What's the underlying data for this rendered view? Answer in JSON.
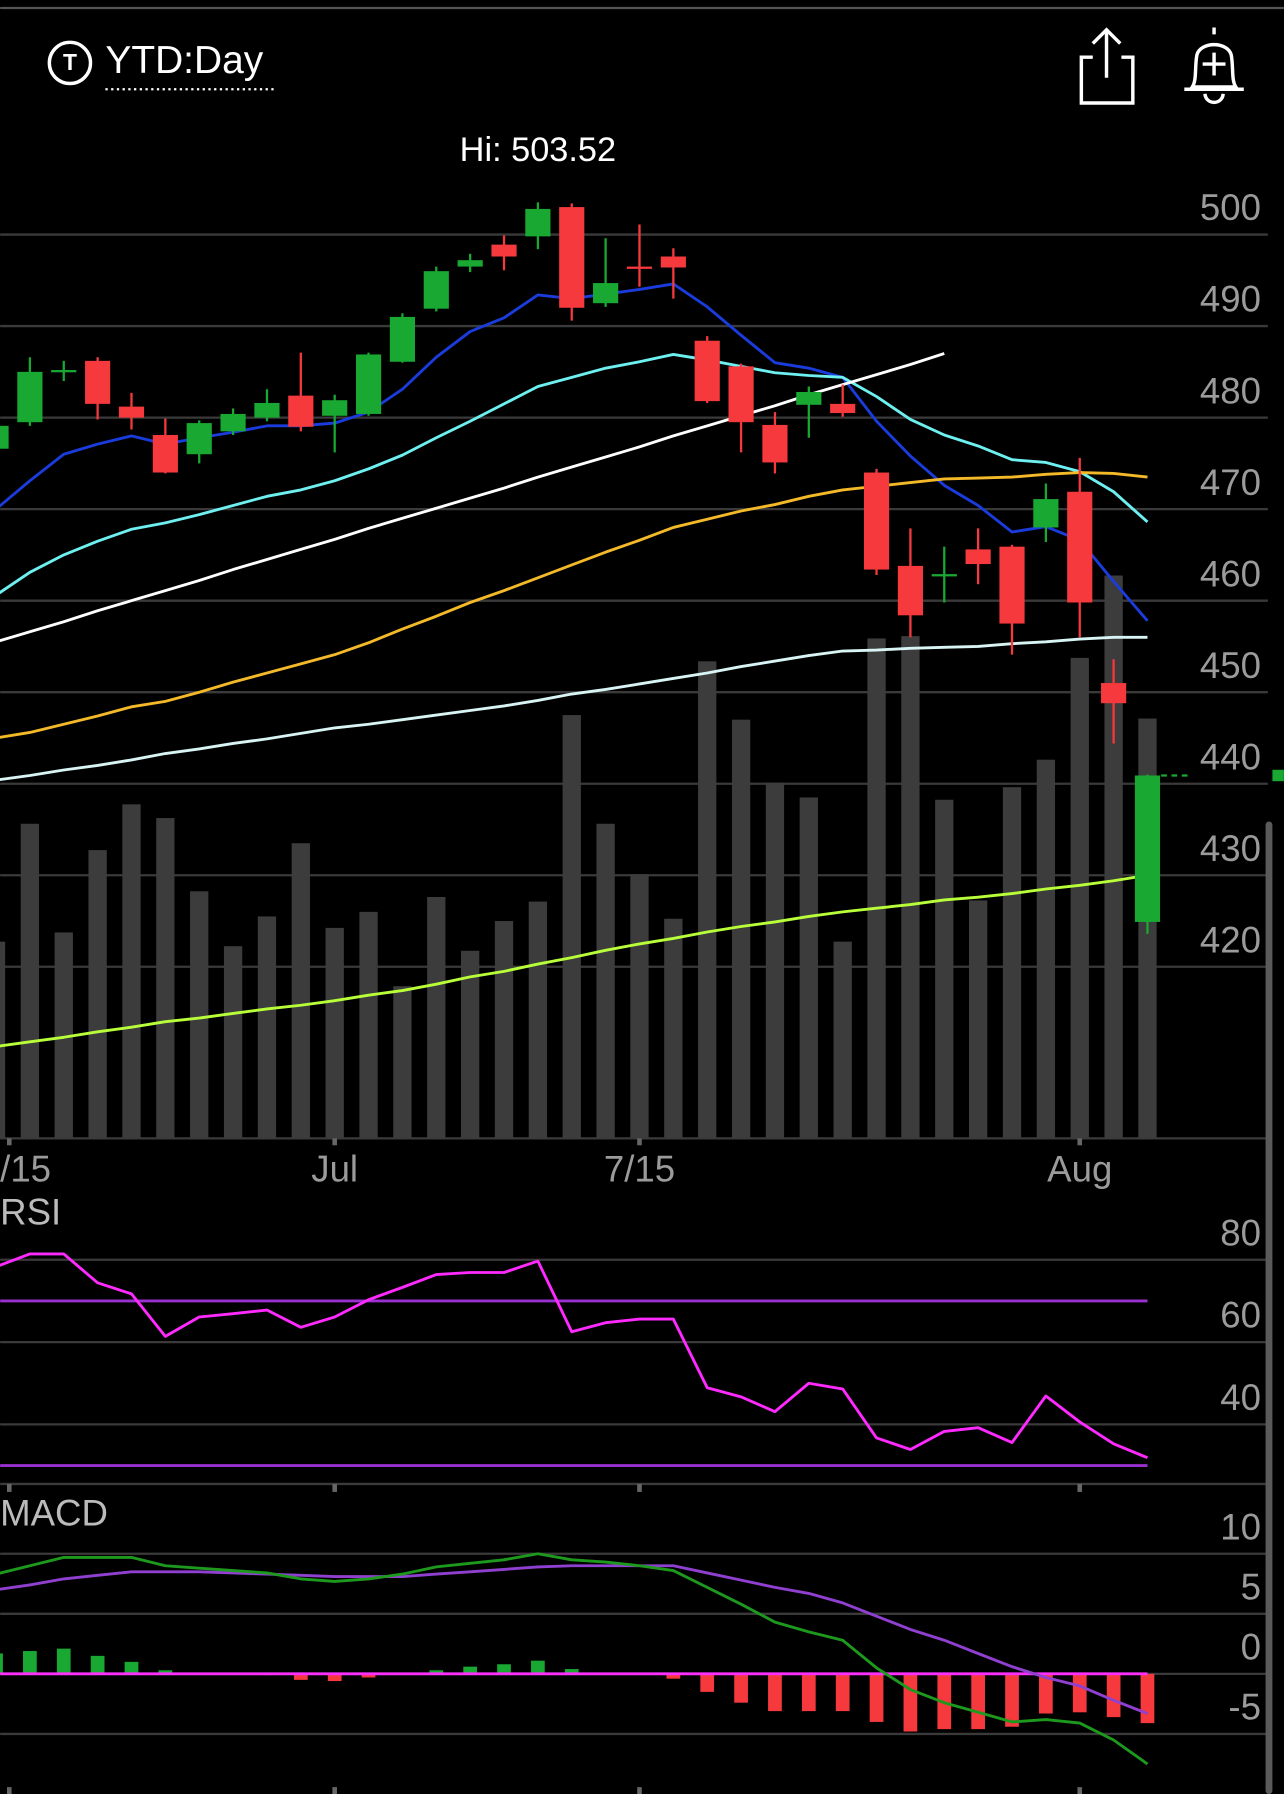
{
  "header": {
    "title": "YTD:Day"
  },
  "chart_data": {
    "type": "candlestick",
    "annotation": "Hi: 503.52",
    "categories": [
      "/15",
      null,
      null,
      null,
      null,
      null,
      null,
      null,
      null,
      null,
      "Jul",
      null,
      null,
      null,
      null,
      null,
      null,
      null,
      null,
      "7/15",
      null,
      null,
      null,
      null,
      null,
      null,
      null,
      null,
      null,
      null,
      null,
      null,
      "Aug",
      null,
      null
    ],
    "open": [
      476.6,
      479.5,
      485,
      486.2,
      481.2,
      478.1,
      476,
      478.5,
      480,
      482.4,
      480.2,
      480.4,
      486.1,
      491.9,
      496.5,
      498.9,
      499.8,
      503,
      492.5,
      496.5,
      497.6,
      488.4,
      485.6,
      479.2,
      481.4,
      481.5,
      474,
      463.8,
      462.8,
      465.6,
      465.9,
      468,
      471.9,
      451,
      424.9
    ],
    "high": [
      479.5,
      486.6,
      486.2,
      486.6,
      482.7,
      479.9,
      479.7,
      481,
      483.1,
      487.1,
      482.5,
      487.1,
      491.4,
      496.5,
      497.9,
      499.9,
      503.52,
      503.4,
      499.6,
      501.1,
      498.5,
      488.9,
      485.9,
      480.6,
      483.4,
      483.6,
      474.4,
      467.9,
      465.9,
      467.9,
      466.1,
      472.8,
      475.6,
      453.6,
      441
    ],
    "low": [
      476,
      479.1,
      484,
      479.8,
      478.7,
      473.9,
      475,
      478.1,
      479.6,
      478.5,
      476.2,
      480.2,
      486,
      491.6,
      495.9,
      496.1,
      498.4,
      490.6,
      492.1,
      494.3,
      493,
      481.6,
      476.2,
      473.9,
      477.8,
      480.1,
      462.8,
      456,
      459.8,
      461.8,
      454.1,
      466.4,
      456,
      444.4,
      423.6
    ],
    "close": [
      479.1,
      485,
      485.2,
      481.5,
      480,
      474,
      479.4,
      480.4,
      481.6,
      479,
      481.9,
      486.9,
      491,
      496,
      497.2,
      497.6,
      502.8,
      492,
      494.7,
      496.3,
      496.4,
      481.8,
      479.5,
      475.1,
      482.8,
      480.5,
      463.4,
      458.4,
      462.9,
      464,
      457.5,
      471.1,
      459.8,
      448.8,
      440.9
    ],
    "up_color": "#19a832",
    "down_color": "#f5393c",
    "ylim": [
      401.25,
      513.125
    ],
    "yticks": [
      420,
      430,
      440,
      450,
      460,
      470,
      480,
      490,
      500
    ],
    "grid": true,
    "overlays": [
      {
        "color": "#1a3cdc",
        "values": [
          470,
          473.1,
          476,
          477.1,
          478,
          477.1,
          477.8,
          478.4,
          479.1,
          479.1,
          479.4,
          480.6,
          483.1,
          486.6,
          489.4,
          490.9,
          493.4,
          493,
          493.5,
          494,
          494.6,
          492.1,
          489,
          486,
          485.4,
          484.4,
          479.6,
          475.8,
          472.6,
          470.4,
          467.5,
          468.1,
          466.6,
          462.1,
          457.8
        ]
      },
      {
        "color": "#6ef0f0",
        "values": [
          460.6,
          463.1,
          465,
          466.5,
          467.8,
          468.5,
          469.4,
          470.4,
          471.4,
          472.1,
          473.1,
          474.4,
          475.9,
          477.8,
          479.6,
          481.5,
          483.4,
          484.4,
          485.4,
          486.1,
          486.9,
          486.3,
          485.6,
          484.9,
          484.6,
          484.4,
          482.3,
          479.8,
          478.1,
          476.9,
          475.4,
          475.1,
          474.1,
          471.9,
          468.6
        ]
      },
      {
        "color": "#f4b928",
        "values": [
          445,
          445.6,
          446.5,
          447.4,
          448.4,
          449,
          450,
          451.1,
          452.1,
          453.1,
          454.1,
          455.4,
          456.9,
          458.3,
          459.8,
          461.1,
          462.5,
          463.9,
          465.3,
          466.6,
          468,
          468.9,
          469.8,
          470.5,
          471.4,
          472.1,
          472.5,
          472.9,
          473.3,
          473.4,
          473.5,
          473.8,
          474,
          473.9,
          473.5
        ]
      },
      {
        "color": "#d8f4f4",
        "values": [
          440.4,
          440.9,
          441.5,
          442,
          442.6,
          443.3,
          443.8,
          444.4,
          444.9,
          445.5,
          446.1,
          446.5,
          447,
          447.5,
          448,
          448.5,
          449.1,
          449.8,
          450.3,
          450.9,
          451.5,
          452.1,
          452.8,
          453.4,
          454,
          454.5,
          454.6,
          454.8,
          454.9,
          455,
          455.3,
          455.5,
          455.8,
          456,
          456
        ]
      },
      {
        "color": "#b8ff3a",
        "values": [
          411.3,
          411.8,
          412.3,
          412.9,
          413.4,
          414,
          414.4,
          414.9,
          415.4,
          415.8,
          416.3,
          416.9,
          417.4,
          418.1,
          418.9,
          419.5,
          420.3,
          421,
          421.8,
          422.5,
          423.1,
          423.8,
          424.4,
          424.9,
          425.5,
          426,
          426.4,
          426.8,
          427.3,
          427.6,
          428,
          428.5,
          428.9,
          429.4,
          430
        ]
      },
      {
        "color": "#ffffff",
        "values": [
          455.5,
          456.6,
          457.7,
          458.9,
          460,
          461.1,
          462.2,
          463.4,
          464.5,
          465.6,
          466.7,
          467.9,
          469,
          470.1,
          471.2,
          472.3,
          473.5,
          474.6,
          475.7,
          476.8,
          478,
          479.1,
          480.2,
          481.3,
          482.5,
          483.6,
          484.7,
          485.8,
          487,
          null,
          null,
          null,
          null,
          null,
          null
        ]
      }
    ],
    "volume": {
      "color": "#3c3c3c",
      "ylim": [
        0,
        100
      ],
      "values": [
        34.4,
        55,
        36,
        50.4,
        58.4,
        56,
        43.2,
        33.6,
        38.8,
        51.6,
        36.8,
        39.6,
        26.6,
        42.2,
        32.8,
        38,
        41.4,
        74,
        55,
        46.2,
        38.4,
        83.4,
        73.2,
        62.2,
        59.6,
        34.4,
        87.4,
        87.8,
        59.2,
        41.6,
        61.4,
        66.2,
        84,
        98.4,
        73.4
      ]
    },
    "rsi": {
      "label": "RSI",
      "color": "#ff2aff",
      "level_color": "#9b30d0",
      "levels": [
        70,
        30
      ],
      "ylim": [
        24.7,
        94.2
      ],
      "yticks": [
        40,
        60,
        80
      ],
      "values": [
        78.3,
        81.4,
        81.4,
        74.4,
        71.7,
        61.4,
        66.1,
        66.9,
        67.8,
        63.6,
        66.1,
        70.3,
        73.3,
        76.4,
        76.9,
        76.9,
        79.7,
        62.5,
        64.7,
        65.6,
        65.6,
        48.9,
        46.7,
        43.1,
        50,
        48.6,
        36.7,
        33.9,
        38.3,
        39.2,
        35.6,
        46.9,
        40.6,
        35.3,
        31.9
      ]
    },
    "macd": {
      "label": "MACD",
      "macd_color": "#1d9a1d",
      "signal_color": "#9040d0",
      "zero_color": "#ff30ff",
      "ylim": [
        -10,
        15
      ],
      "yticks": [
        -5,
        0,
        5,
        10
      ],
      "macd": [
        8.3,
        9,
        9.7,
        9.7,
        9.7,
        9,
        8.8,
        8.6,
        8.4,
        7.9,
        7.7,
        7.9,
        8.3,
        8.9,
        9.2,
        9.5,
        10,
        9.5,
        9.3,
        9,
        8.6,
        7.2,
        5.8,
        4.3,
        3.5,
        2.8,
        0.5,
        -1.3,
        -2.4,
        -3.2,
        -4,
        -3.8,
        -4.1,
        -5.5,
        -7.5
      ],
      "signal": [
        7,
        7.4,
        7.9,
        8.2,
        8.5,
        8.5,
        8.5,
        8.4,
        8.3,
        8.2,
        8.1,
        8.1,
        8.1,
        8.3,
        8.5,
        8.7,
        8.9,
        9,
        9,
        9,
        9,
        8.4,
        7.8,
        7.2,
        6.7,
        5.9,
        4.8,
        3.7,
        2.8,
        1.7,
        0.6,
        -0.3,
        -1,
        -2.2,
        -3.3
      ],
      "histogram": [
        1.7,
        1.9,
        2.1,
        1.5,
        1,
        0.3,
        0.1,
        0,
        -0.1,
        -0.5,
        -0.6,
        -0.3,
        0,
        0.3,
        0.6,
        0.8,
        1.1,
        0.4,
        0.1,
        0,
        -0.4,
        -1.5,
        -2.4,
        -3.1,
        -3.1,
        -3.1,
        -4,
        -4.8,
        -4.6,
        -4.6,
        -4.4,
        -3.3,
        -3.2,
        -3.6,
        -4.1
      ]
    }
  }
}
